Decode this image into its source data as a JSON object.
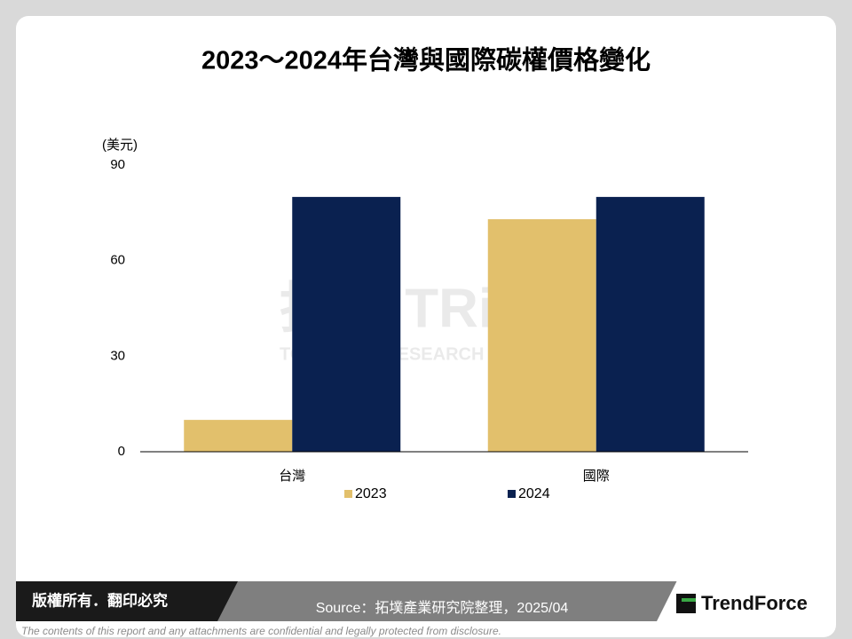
{
  "chart_data": {
    "type": "bar",
    "title": "2023～2024年台灣與國際碳權價格變化",
    "y_label": "(美元)",
    "categories": [
      "台灣",
      "國際"
    ],
    "series": [
      {
        "name": "2023",
        "color": "#e2c06c",
        "values": [
          10,
          73
        ]
      },
      {
        "name": "2024",
        "color": "#0a2150",
        "values": [
          80,
          80
        ]
      }
    ],
    "ylim": [
      0,
      90
    ],
    "yticks": [
      0,
      30,
      60,
      90
    ],
    "grid": false,
    "legend": "bottom"
  },
  "watermark": {
    "logo": "拓墣 TRi",
    "name": "TOPOLOGY RESEARCH INSTITUTE"
  },
  "footer": {
    "rights": "版權所有．翻印必究",
    "source": "Source：拓墣產業研究院整理，2025/04",
    "brand": "TrendForce",
    "disclaimer": "The contents of this report and any attachments are confidential and legally protected from disclosure."
  }
}
